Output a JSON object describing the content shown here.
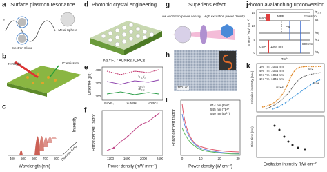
{
  "panels": [
    {
      "letter": "a",
      "title": "Surface plasmon resonance",
      "labels": [
        "Metal Sphere",
        "Electron Cloud",
        "E"
      ]
    },
    {
      "letter": "b",
      "labels": [
        "NIR light",
        "UC emission"
      ]
    },
    {
      "letter": "c",
      "x_label": "Wavelength (nm)",
      "y_label": "Intensity",
      "z_label": "Diameter (nm)",
      "x_ticks": [
        "400",
        "500",
        "600",
        "700",
        "800"
      ]
    },
    {
      "letter": "d",
      "title": "Photonic crystal engineering",
      "labels": [
        "NaYF₄ / AuNRs /OPCs"
      ]
    },
    {
      "letter": "e",
      "y_label": "Lifetime (μs)",
      "y_ticks": [
        "200",
        "300",
        "400"
      ],
      "x_ticks": [
        "NaYF₄",
        "/AuNRs",
        "/OPCs"
      ],
      "legend": [
        "²H₁₁/₂",
        "⁴S₃/₂",
        "⁴F₉/₂"
      ]
    },
    {
      "letter": "f",
      "y_label": "Enhancement factor",
      "x_label": "Power density (mW mm⁻²)",
      "x_ticks": [
        "1200",
        "1600",
        "2000",
        "2400"
      ]
    },
    {
      "letter": "g",
      "title": "Superlens effect",
      "labels": [
        "Low excitation power density",
        "High excitation power density"
      ]
    },
    {
      "letter": "h",
      "labels": [
        "100 μm"
      ]
    },
    {
      "letter": "i",
      "y_label": "Enhancement factor",
      "x_label": "Power density (W cm⁻²)",
      "x_ticks": [
        "0",
        "10",
        "20",
        "30"
      ],
      "legend": [
        "614 nm (Eu³⁺)",
        "545 nm (Tb³⁺)",
        "540 nm (Er³⁺)"
      ]
    },
    {
      "letter": "j",
      "title": "Photon avalanching upconversion",
      "y_label": "Energy (×10³ cm⁻¹)",
      "y_ticks": [
        "0",
        "5",
        "10",
        "15"
      ],
      "labels": [
        "ESA",
        "MPR",
        "CR",
        "GSA",
        "1064 nm",
        "800 nm",
        "Emission",
        "Tm³⁺"
      ],
      "levels": [
        "³F₂,₃",
        "³H₄",
        "³H₅",
        "³F₄",
        "³H₆"
      ]
    },
    {
      "letter": "k",
      "y_label": "Emission intensity (a.u.)",
      "y2_label": "Rise time (ms)",
      "x_label": "Excitation intensity (kW cm⁻²)",
      "labels": [
        "S=22",
        "S=2",
        "S=1"
      ],
      "legend": [
        "1% Tm, 1064 nm",
        "4% Tm, 1064 nm",
        "8% Tm, 1064 nm",
        "1% Tm, 1345 nm"
      ]
    }
  ]
}
